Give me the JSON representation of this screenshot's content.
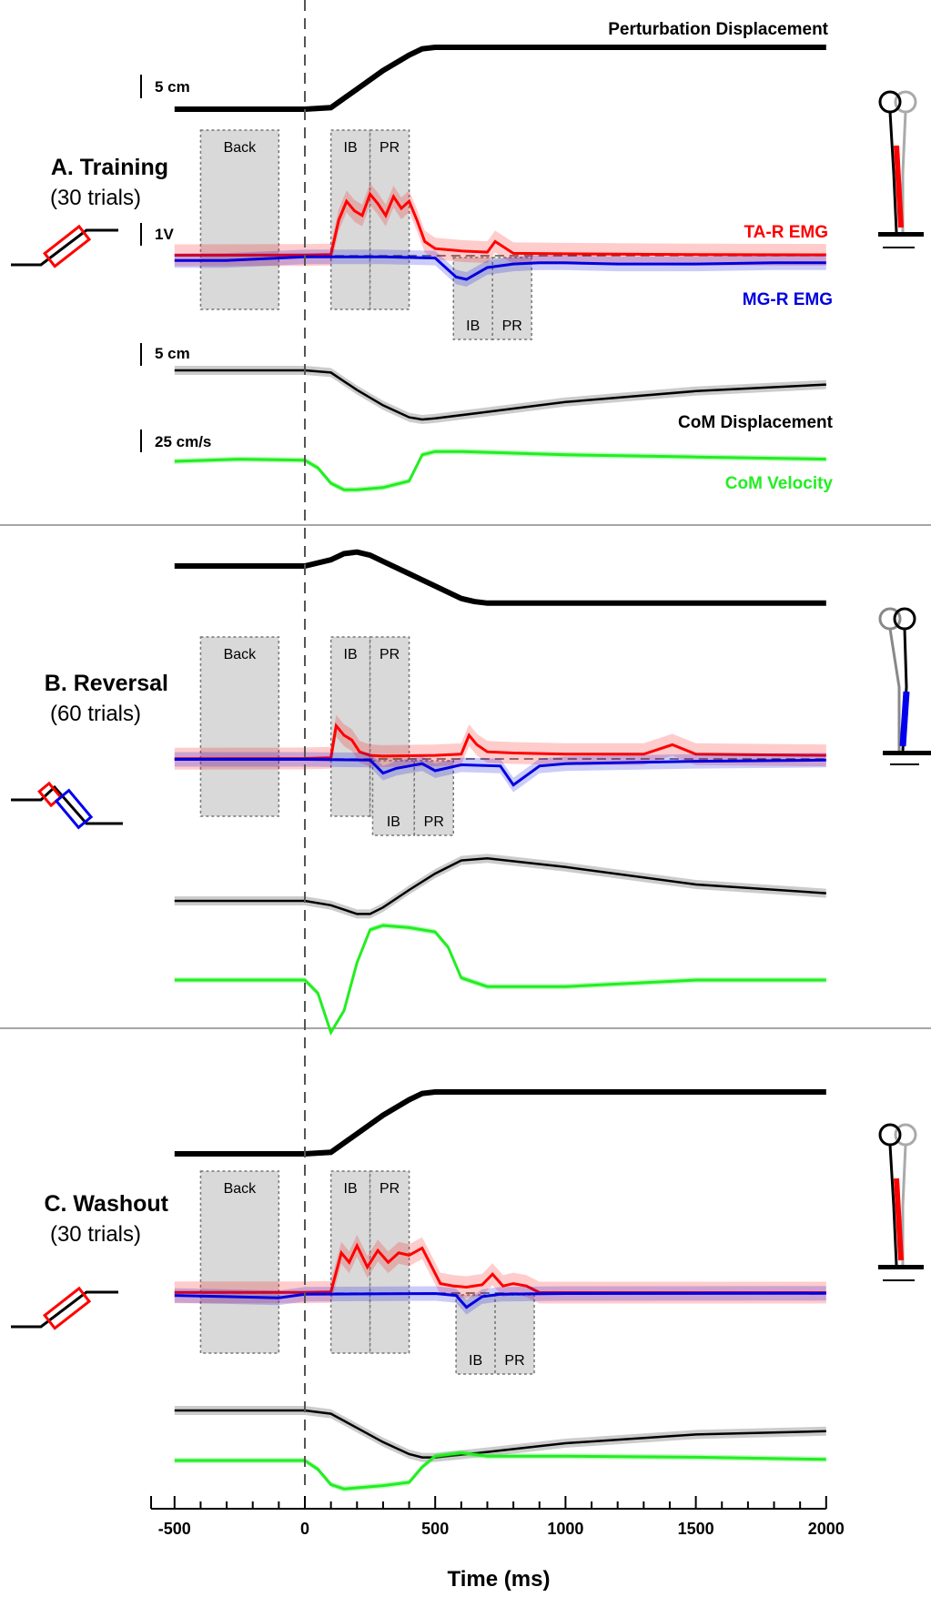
{
  "chart_data": {
    "type": "line",
    "xlabel": "Time (ms)",
    "x_ticks": [
      -500,
      0,
      500,
      1000,
      1500,
      2000
    ],
    "xlim": [
      -500,
      2000
    ],
    "onset_line_x": 0,
    "colors": {
      "perturbation": "#000000",
      "ta": "#ff0000",
      "mg": "#0000e0",
      "com_disp": "#000000",
      "com_vel": "#22ee22",
      "window": "#d9d9d9"
    },
    "scale_bars": {
      "displacement": "5 cm",
      "emg": "1V",
      "velocity": "25 cm/s"
    },
    "labels": {
      "perturbation": "Perturbation Displacement",
      "ta": "TA-R EMG",
      "mg": "MG-R EMG",
      "com_disp": "CoM Displacement",
      "com_vel": "CoM Velocity"
    },
    "panels": [
      {
        "title": "A. Training",
        "subtitle": "(30 trials)",
        "stance_icon": "forward-lean-figure-icon",
        "windows_ta": [
          {
            "label": "Back",
            "x0": -400,
            "x1": -100
          },
          {
            "label": "IB",
            "x0": 100,
            "x1": 250
          },
          {
            "label": "PR",
            "x0": 250,
            "x1": 400
          }
        ],
        "windows_mg": [
          {
            "label": "IB",
            "x0": 570,
            "x1": 720
          },
          {
            "label": "PR",
            "x0": 720,
            "x1": 870
          }
        ],
        "perturbation": {
          "x": [
            -500,
            0,
            100,
            200,
            300,
            400,
            450,
            500,
            2000
          ],
          "y": [
            0,
            0,
            0.1,
            1.3,
            2.5,
            3.5,
            3.9,
            4.0,
            4.0
          ]
        },
        "ta_emg": {
          "x": [
            -500,
            0,
            100,
            130,
            160,
            190,
            220,
            250,
            280,
            310,
            340,
            370,
            400,
            430,
            460,
            500,
            600,
            700,
            730,
            800,
            1000,
            1500,
            2000
          ],
          "y": [
            0.02,
            0.03,
            0.05,
            1.5,
            2.3,
            1.9,
            1.7,
            2.6,
            2.2,
            1.7,
            2.5,
            2.0,
            2.3,
            1.5,
            0.6,
            0.3,
            0.2,
            0.15,
            0.6,
            0.1,
            0.08,
            0.05,
            0.04
          ]
        },
        "mg_emg": {
          "x": [
            -500,
            -300,
            0,
            300,
            500,
            580,
            620,
            700,
            800,
            900,
            1000,
            1200,
            1500,
            1800,
            2000
          ],
          "y": [
            -0.2,
            -0.2,
            -0.05,
            -0.05,
            -0.1,
            -0.9,
            -1.0,
            -0.5,
            -0.35,
            -0.3,
            -0.3,
            -0.35,
            -0.35,
            -0.3,
            -0.3
          ]
        },
        "com_disp": {
          "x": [
            -500,
            0,
            100,
            200,
            300,
            400,
            450,
            500,
            700,
            1000,
            1500,
            2000
          ],
          "y": [
            0,
            0,
            -0.2,
            -1.8,
            -3.2,
            -4.3,
            -4.5,
            -4.4,
            -3.8,
            -2.9,
            -1.9,
            -1.3
          ]
        },
        "com_vel": {
          "x": [
            -500,
            -250,
            0,
            50,
            100,
            150,
            200,
            300,
            400,
            450,
            500,
            600,
            1000,
            1500,
            2000
          ],
          "y": [
            0,
            0.1,
            0.05,
            -0.3,
            -1.0,
            -1.3,
            -1.3,
            -1.2,
            -0.9,
            0.3,
            0.45,
            0.45,
            0.3,
            0.2,
            0.1
          ]
        }
      },
      {
        "title": "B. Reversal",
        "subtitle": "(60 trials)",
        "stance_icon": "backward-lean-figure-icon",
        "windows_ta": [
          {
            "label": "Back",
            "x0": -400,
            "x1": -100
          },
          {
            "label": "IB",
            "x0": 100,
            "x1": 250
          },
          {
            "label": "PR",
            "x0": 250,
            "x1": 400
          }
        ],
        "windows_mg": [
          {
            "label": "IB",
            "x0": 260,
            "x1": 420
          },
          {
            "label": "PR",
            "x0": 420,
            "x1": 570
          }
        ],
        "perturbation": {
          "x": [
            -500,
            0,
            100,
            150,
            200,
            250,
            300,
            400,
            500,
            600,
            650,
            700,
            2000
          ],
          "y": [
            0,
            0,
            0.4,
            0.8,
            0.9,
            0.7,
            0.3,
            -0.5,
            -1.3,
            -2.1,
            -2.3,
            -2.4,
            -2.4
          ]
        },
        "ta_emg": {
          "x": [
            -500,
            0,
            100,
            120,
            150,
            180,
            210,
            250,
            300,
            500,
            600,
            630,
            660,
            700,
            800,
            1000,
            1300,
            1410,
            1500,
            2000
          ],
          "y": [
            0.01,
            0.02,
            0.05,
            1.4,
            1.0,
            0.8,
            0.3,
            0.15,
            0.12,
            0.15,
            0.2,
            1.0,
            0.6,
            0.3,
            0.25,
            0.2,
            0.2,
            0.6,
            0.2,
            0.15
          ]
        },
        "mg_emg": {
          "x": [
            -500,
            0,
            250,
            300,
            350,
            400,
            450,
            500,
            600,
            750,
            800,
            900,
            1000,
            1500,
            2000
          ],
          "y": [
            -0.02,
            -0.02,
            -0.05,
            -0.6,
            -0.4,
            -0.3,
            -0.2,
            -0.5,
            -0.25,
            -0.3,
            -1.1,
            -0.3,
            -0.2,
            -0.1,
            -0.05
          ]
        },
        "com_disp": {
          "x": [
            -500,
            0,
            100,
            200,
            250,
            300,
            400,
            500,
            600,
            700,
            1000,
            1500,
            2000
          ],
          "y": [
            0,
            0,
            -0.4,
            -1.2,
            -1.2,
            -0.6,
            1.0,
            2.5,
            3.7,
            3.9,
            3.1,
            1.5,
            0.7
          ]
        },
        "com_vel": {
          "x": [
            -500,
            0,
            50,
            100,
            150,
            200,
            250,
            300,
            400,
            500,
            550,
            600,
            700,
            1000,
            1500,
            2000
          ],
          "y": [
            0,
            0,
            -0.6,
            -2.4,
            -1.4,
            0.8,
            2.3,
            2.5,
            2.4,
            2.2,
            1.5,
            0.1,
            -0.3,
            -0.3,
            0.0,
            0.0
          ]
        }
      },
      {
        "title": "C. Washout",
        "subtitle": "(30 trials)",
        "stance_icon": "forward-lean-figure-icon",
        "windows_ta": [
          {
            "label": "Back",
            "x0": -400,
            "x1": -100
          },
          {
            "label": "IB",
            "x0": 100,
            "x1": 250
          },
          {
            "label": "PR",
            "x0": 250,
            "x1": 400
          }
        ],
        "windows_mg": [
          {
            "label": "IB",
            "x0": 580,
            "x1": 730
          },
          {
            "label": "PR",
            "x0": 730,
            "x1": 880
          }
        ],
        "perturbation": {
          "x": [
            -500,
            0,
            100,
            200,
            300,
            400,
            450,
            500,
            2000
          ],
          "y": [
            0,
            0,
            0.1,
            1.3,
            2.5,
            3.5,
            3.9,
            4.0,
            4.0
          ]
        },
        "ta_emg": {
          "x": [
            -500,
            0,
            100,
            140,
            170,
            200,
            240,
            280,
            320,
            360,
            400,
            450,
            520,
            570,
            620,
            680,
            720,
            760,
            800,
            850,
            900,
            2000
          ],
          "y": [
            0.03,
            0.03,
            0.05,
            1.7,
            1.3,
            2.0,
            1.1,
            1.8,
            1.3,
            1.7,
            1.6,
            1.9,
            0.4,
            0.3,
            0.25,
            0.35,
            0.8,
            0.3,
            0.4,
            0.3,
            0.02,
            0.02
          ]
        },
        "mg_emg": {
          "x": [
            -500,
            -300,
            -100,
            0,
            500,
            580,
            620,
            680,
            750,
            1000,
            2000
          ],
          "y": [
            -0.1,
            -0.15,
            -0.2,
            -0.05,
            -0.02,
            -0.1,
            -0.6,
            -0.15,
            -0.05,
            -0.02,
            -0.01
          ]
        },
        "com_disp": {
          "x": [
            -500,
            0,
            100,
            200,
            300,
            400,
            450,
            500,
            700,
            1000,
            1500,
            2000
          ],
          "y": [
            0,
            0,
            -0.3,
            -1.6,
            -2.9,
            -4.0,
            -4.3,
            -4.3,
            -3.8,
            -3.0,
            -2.2,
            -1.9
          ]
        },
        "com_vel": {
          "x": [
            -500,
            0,
            50,
            100,
            150,
            200,
            300,
            400,
            450,
            500,
            600,
            700,
            1000,
            1500,
            2000
          ],
          "y": [
            0,
            0,
            -0.4,
            -1.1,
            -1.3,
            -1.25,
            -1.15,
            -1.0,
            -0.3,
            0.2,
            0.35,
            0.2,
            0.2,
            0.15,
            0.05
          ]
        }
      }
    ]
  }
}
